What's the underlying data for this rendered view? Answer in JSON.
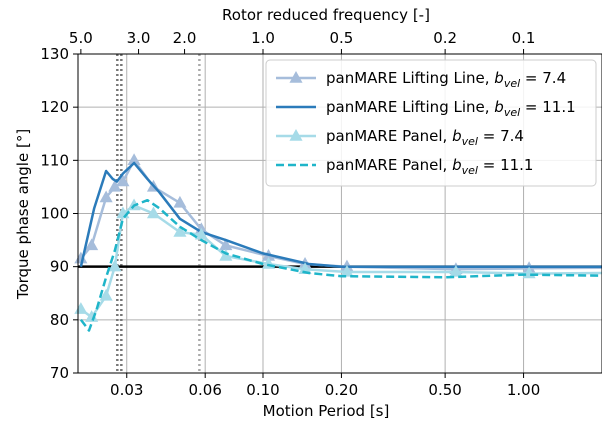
{
  "chart_data": {
    "type": "line",
    "xlabel": "Motion Period [s]",
    "ylabel": "Torque phase angle [°]",
    "top_xlabel": "Rotor reduced frequency [-]",
    "xscale": "log",
    "xlim": [
      0.0195,
      2.0
    ],
    "ylim": [
      70,
      130
    ],
    "grid": true,
    "legend_position": "top-right",
    "x_ticks": [
      {
        "value": 0.03,
        "label": "0.03"
      },
      {
        "value": 0.06,
        "label": "0.06"
      },
      {
        "value": 0.1,
        "label": "0.10"
      },
      {
        "value": 0.2,
        "label": "0.20"
      },
      {
        "value": 0.5,
        "label": "0.50"
      },
      {
        "value": 1.0,
        "label": "1.00"
      }
    ],
    "y_ticks": [
      70,
      80,
      90,
      100,
      110,
      120,
      130
    ],
    "top_ticks": [
      {
        "value": 0.02,
        "label": "5.0"
      },
      {
        "value": 0.0333,
        "label": "3.0"
      },
      {
        "value": 0.05,
        "label": "2.0"
      },
      {
        "value": 0.1,
        "label": "1.0"
      },
      {
        "value": 0.2,
        "label": "0.5"
      },
      {
        "value": 0.5,
        "label": "0.2"
      },
      {
        "value": 1.0,
        "label": "0.1"
      }
    ],
    "reference_line": {
      "y": 90,
      "color": "#000000"
    },
    "vertical_lines": [
      {
        "x": 0.0276,
        "color": "#777777"
      },
      {
        "x": 0.0286,
        "color": "#777777"
      },
      {
        "x": 0.057,
        "color": "#aaaaaa"
      }
    ],
    "series": [
      {
        "name": "panMARE Lifting Line, b_vel = 7.4",
        "color": "#a6bddb",
        "dash": "solid",
        "marker": "triangle",
        "x": [
          0.02,
          0.022,
          0.025,
          0.027,
          0.029,
          0.032,
          0.038,
          0.048,
          0.058,
          0.072,
          0.105,
          0.145,
          0.21,
          0.55,
          1.05,
          2.0
        ],
        "y": [
          91.5,
          94,
          103,
          105,
          106,
          110,
          105,
          102,
          97,
          94,
          92,
          90.5,
          90,
          89.5,
          89.7,
          89.8
        ]
      },
      {
        "name": "panMARE Lifting Line, b_vel = 11.1",
        "color": "#2b7bba",
        "dash": "solid",
        "marker": "none",
        "x": [
          0.02,
          0.0225,
          0.025,
          0.0265,
          0.0275,
          0.029,
          0.032,
          0.036,
          0.04,
          0.048,
          0.058,
          0.072,
          0.1,
          0.15,
          0.2,
          0.4,
          1.0,
          2.0
        ],
        "y": [
          90,
          101,
          108,
          106.5,
          106,
          107.5,
          109.5,
          106.5,
          104,
          99,
          96.5,
          95,
          92.5,
          90.5,
          90,
          90,
          90,
          90
        ]
      },
      {
        "name": "panMARE Panel, b_vel = 7.4",
        "color": "#a6dbe8",
        "dash": "solid",
        "marker": "triangle",
        "x": [
          0.02,
          0.022,
          0.025,
          0.027,
          0.029,
          0.032,
          0.038,
          0.048,
          0.058,
          0.072,
          0.105,
          0.145,
          0.21,
          0.55,
          1.05,
          2.0
        ],
        "y": [
          82,
          80.5,
          84.5,
          90,
          100,
          101.5,
          100,
          96.5,
          96,
          92,
          90.5,
          89.5,
          89,
          89,
          88.7,
          88.8
        ]
      },
      {
        "name": "panMARE Panel, b_vel = 11.1",
        "color": "#1fb5c9",
        "dash": "dashed",
        "marker": "none",
        "x": [
          0.02,
          0.0215,
          0.023,
          0.025,
          0.027,
          0.029,
          0.032,
          0.036,
          0.04,
          0.048,
          0.058,
          0.072,
          0.1,
          0.15,
          0.2,
          0.5,
          1.0,
          2.0
        ],
        "y": [
          80,
          78,
          82,
          88,
          93,
          99,
          101.5,
          102.5,
          101,
          97.5,
          95,
          92.5,
          90.5,
          88.8,
          88.2,
          88,
          88.5,
          88.3
        ]
      }
    ]
  }
}
